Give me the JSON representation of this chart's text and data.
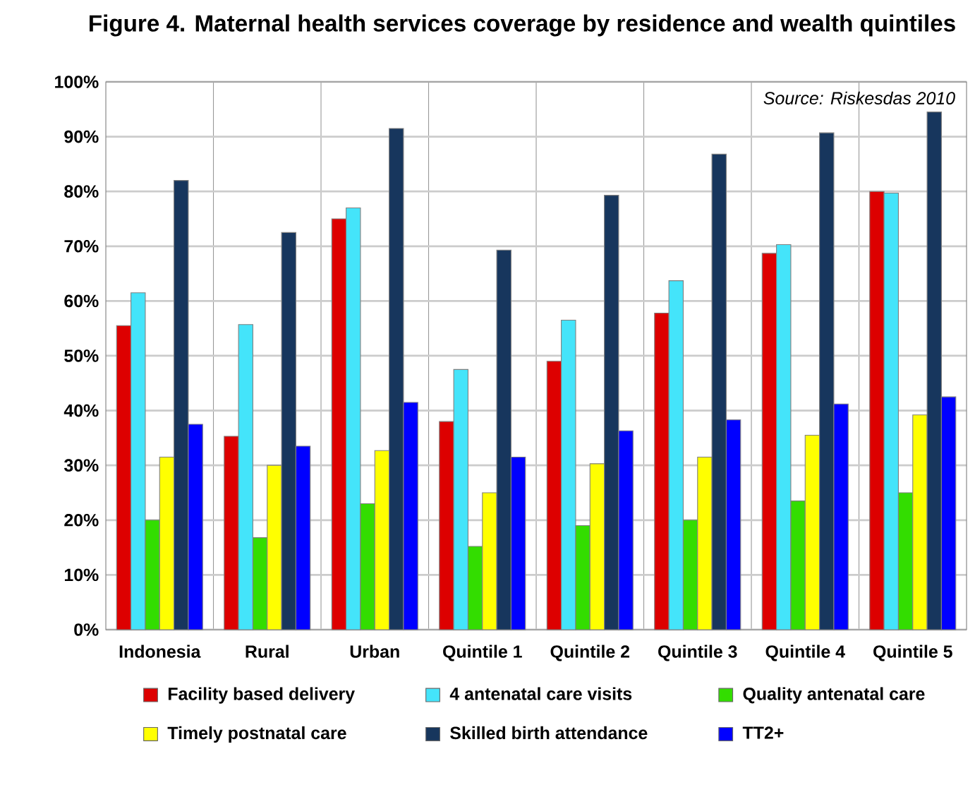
{
  "chart_data": {
    "type": "bar",
    "title": "Figure 4. Maternal health services coverage by residence and wealth quintiles",
    "annotations": [
      "Source: Riskesdas 2010"
    ],
    "categories": [
      "Indonesia",
      "Rural",
      "Urban",
      "Quintile 1",
      "Quintile 2",
      "Quintile 3",
      "Quintile 4",
      "Quintile 5"
    ],
    "series": [
      {
        "name": "Facility based delivery",
        "color": "#dd0000",
        "values": [
          55.5,
          35.3,
          75,
          38,
          49,
          57.8,
          68.7,
          80
        ]
      },
      {
        "name": "4 antenatal care visits",
        "color": "#44e4fa",
        "values": [
          61.5,
          55.7,
          77,
          47.5,
          56.5,
          63.7,
          70.3,
          79.7
        ]
      },
      {
        "name": "Quality antenatal care",
        "color": "#33dd00",
        "values": [
          20,
          16.8,
          23,
          15.2,
          19,
          20,
          23.5,
          25
        ]
      },
      {
        "name": "Timely postnatal care",
        "color": "#ffff00",
        "values": [
          31.5,
          30,
          32.7,
          25,
          30.3,
          31.5,
          35.5,
          39.2
        ]
      },
      {
        "name": "Skilled birth attendance",
        "color": "#17365d",
        "values": [
          82,
          72.5,
          91.5,
          69.3,
          79.3,
          86.8,
          90.7,
          94.5
        ]
      },
      {
        "name": "TT2+",
        "color": "#0000ff",
        "values": [
          37.5,
          33.5,
          41.5,
          31.5,
          36.3,
          38.3,
          41.2,
          42.5
        ]
      }
    ],
    "ylim": [
      0,
      100
    ],
    "yticks": [
      {
        "value": 0,
        "label": "0%"
      },
      {
        "value": 10,
        "label": "10%"
      },
      {
        "value": 20,
        "label": "20%"
      },
      {
        "value": 30,
        "label": "30%"
      },
      {
        "value": 40,
        "label": "40%"
      },
      {
        "value": 50,
        "label": "50%"
      },
      {
        "value": 60,
        "label": "60%"
      },
      {
        "value": 70,
        "label": "70%"
      },
      {
        "value": 80,
        "label": "80%"
      },
      {
        "value": 90,
        "label": "90%"
      },
      {
        "value": 100,
        "label": "100%"
      }
    ],
    "grid": "y",
    "legend": "bottom"
  }
}
